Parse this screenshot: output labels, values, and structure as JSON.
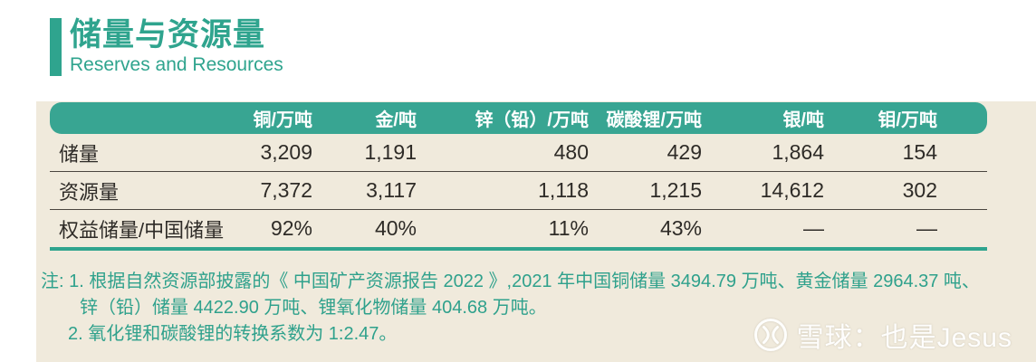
{
  "page": {
    "title_cn": "储量与资源量",
    "title_en": "Reserves and Resources"
  },
  "colors": {
    "accent_teal": "#2fa48e",
    "header_bg": "#38a592",
    "panel_beige": "#f0eadc",
    "table_text": "#2e2b27",
    "row_divider": "#4a453f"
  },
  "table": {
    "columns": [
      "",
      "铜/万吨",
      "金/吨",
      "锌（铅）/万吨",
      "碳酸锂/万吨",
      "银/吨",
      "钼/万吨"
    ],
    "rows": [
      {
        "label": "储量",
        "values": [
          "3,209",
          "1,191",
          "480",
          "429",
          "1,864",
          "154"
        ]
      },
      {
        "label": "资源量",
        "values": [
          "7,372",
          "3,117",
          "1,118",
          "1,215",
          "14,612",
          "302"
        ]
      },
      {
        "label": "权益储量/中国储量",
        "values": [
          "92%",
          "40%",
          "11%",
          "43%",
          "—",
          "—"
        ]
      }
    ]
  },
  "notes": {
    "lines": [
      "注: 1. 根据自然资源部披露的《 中国矿产资源报告 2022 》,2021 年中国铜储量 3494.79 万吨、黄金储量 2964.37 吨、",
      "锌（铅）储量 4422.90 万吨、锂氧化物储量 404.68 万吨。",
      "2. 氧化锂和碳酸锂的转换系数为 1:2.47。"
    ]
  },
  "watermark": {
    "text": "雪球：也是Jesus",
    "logo": "xueqiu-logo"
  }
}
